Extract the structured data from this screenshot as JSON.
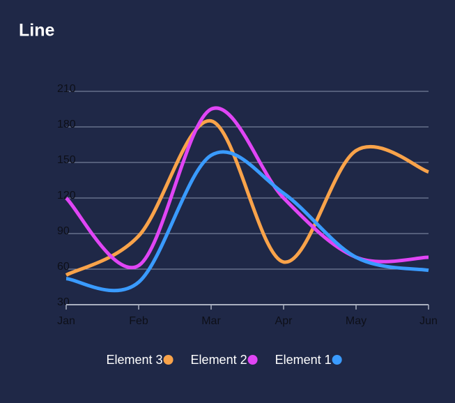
{
  "chart_data": {
    "type": "line",
    "title": "Line",
    "categories": [
      "Jan",
      "Feb",
      "Mar",
      "Apr",
      "May",
      "Jun"
    ],
    "series": [
      {
        "name": "Element 3",
        "color": "#f9a34a",
        "values": [
          55,
          88,
          185,
          66,
          160,
          142
        ]
      },
      {
        "name": "Element 2",
        "color": "#e045f5",
        "values": [
          120,
          63,
          195,
          120,
          70,
          70
        ]
      },
      {
        "name": "Element 1",
        "color": "#3a9bff",
        "values": [
          52,
          49,
          156,
          124,
          70,
          59
        ]
      }
    ],
    "ylim": [
      30,
      210
    ],
    "yticks": [
      30,
      60,
      90,
      120,
      150,
      180,
      210
    ],
    "grid": true
  }
}
